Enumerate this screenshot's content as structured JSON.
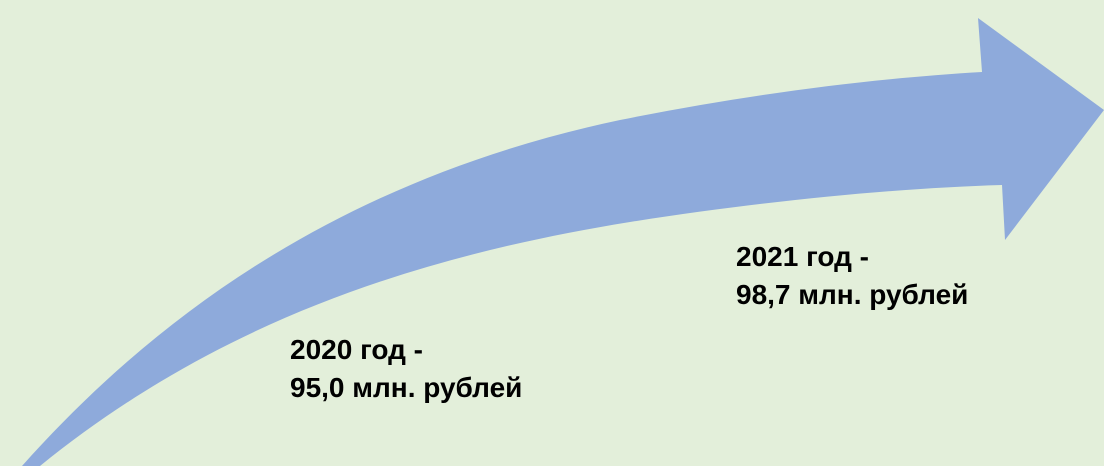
{
  "colors": {
    "background": "#e3efda",
    "arrow": "#8eaadb",
    "text": "#000000"
  },
  "milestones": [
    {
      "year_line": "2020 год -",
      "value_line": "95,0 млн. рублей"
    },
    {
      "year_line": "2021 год -",
      "value_line": "98,7 млн. рублей"
    }
  ]
}
